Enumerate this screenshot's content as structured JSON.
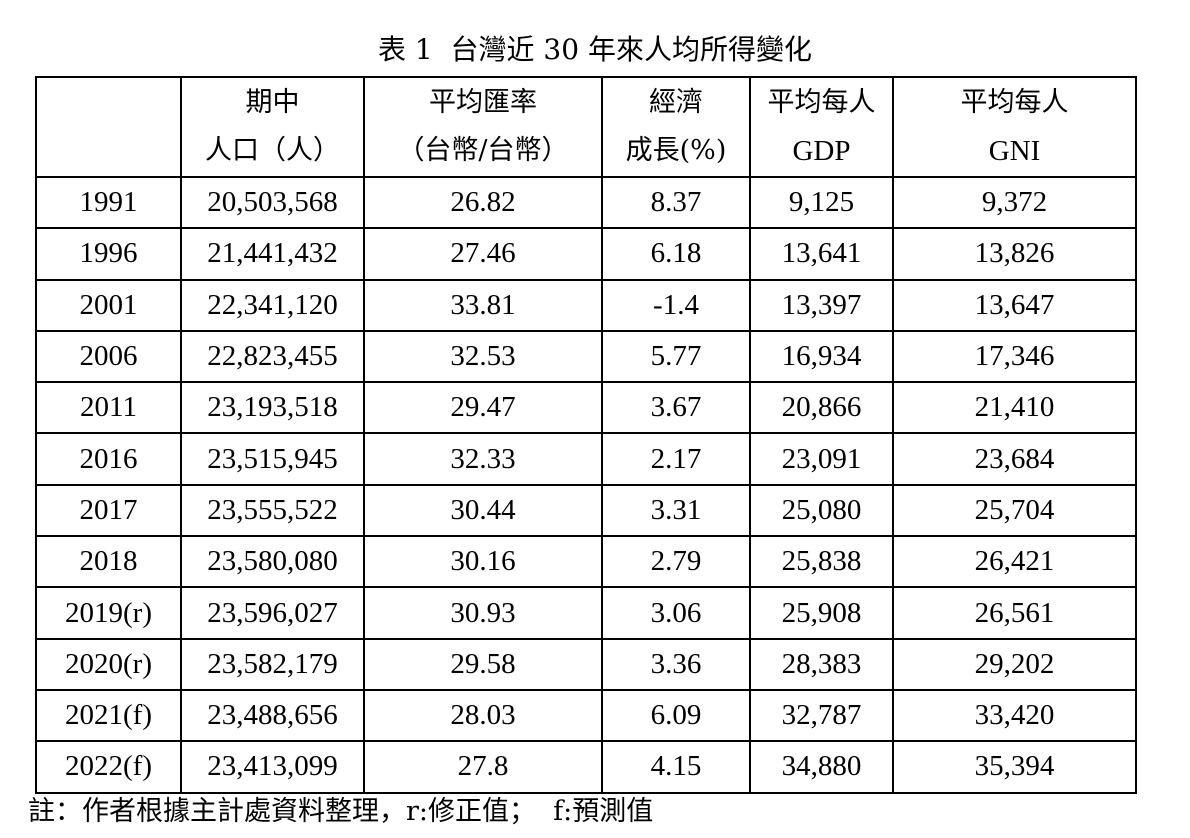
{
  "title": "表 1  台灣近 30 年來人均所得變化",
  "table": {
    "headers": [
      {
        "line1": "",
        "line2": ""
      },
      {
        "line1": "期中",
        "line2": "人口（人）"
      },
      {
        "line1": "平均匯率",
        "line2": "（台幣/台幣）"
      },
      {
        "line1": "經濟",
        "line2": "成長(%)"
      },
      {
        "line1": "平均每人",
        "line2": "GDP"
      },
      {
        "line1": "平均每人",
        "line2": "GNI"
      }
    ],
    "rows": [
      [
        "1991",
        "20,503,568",
        "26.82",
        "8.37",
        "9,125",
        "9,372"
      ],
      [
        "1996",
        "21,441,432",
        "27.46",
        "6.18",
        "13,641",
        "13,826"
      ],
      [
        "2001",
        "22,341,120",
        "33.81",
        "-1.4",
        "13,397",
        "13,647"
      ],
      [
        "2006",
        "22,823,455",
        "32.53",
        "5.77",
        "16,934",
        "17,346"
      ],
      [
        "2011",
        "23,193,518",
        "29.47",
        "3.67",
        "20,866",
        "21,410"
      ],
      [
        "2016",
        "23,515,945",
        "32.33",
        "2.17",
        "23,091",
        "23,684"
      ],
      [
        "2017",
        "23,555,522",
        "30.44",
        "3.31",
        "25,080",
        "25,704"
      ],
      [
        "2018",
        "23,580,080",
        "30.16",
        "2.79",
        "25,838",
        "26,421"
      ],
      [
        "2019(r)",
        "23,596,027",
        "30.93",
        "3.06",
        "25,908",
        "26,561"
      ],
      [
        "2020(r)",
        "23,582,179",
        "29.58",
        "3.36",
        "28,383",
        "29,202"
      ],
      [
        "2021(f)",
        "23,488,656",
        "28.03",
        "6.09",
        "32,787",
        "33,420"
      ],
      [
        "2022(f)",
        "23,413,099",
        "27.8",
        "4.15",
        "34,880",
        "35,394"
      ]
    ]
  },
  "note": "註：作者根據主計處資料整理，r:修正值；  f:預測值"
}
